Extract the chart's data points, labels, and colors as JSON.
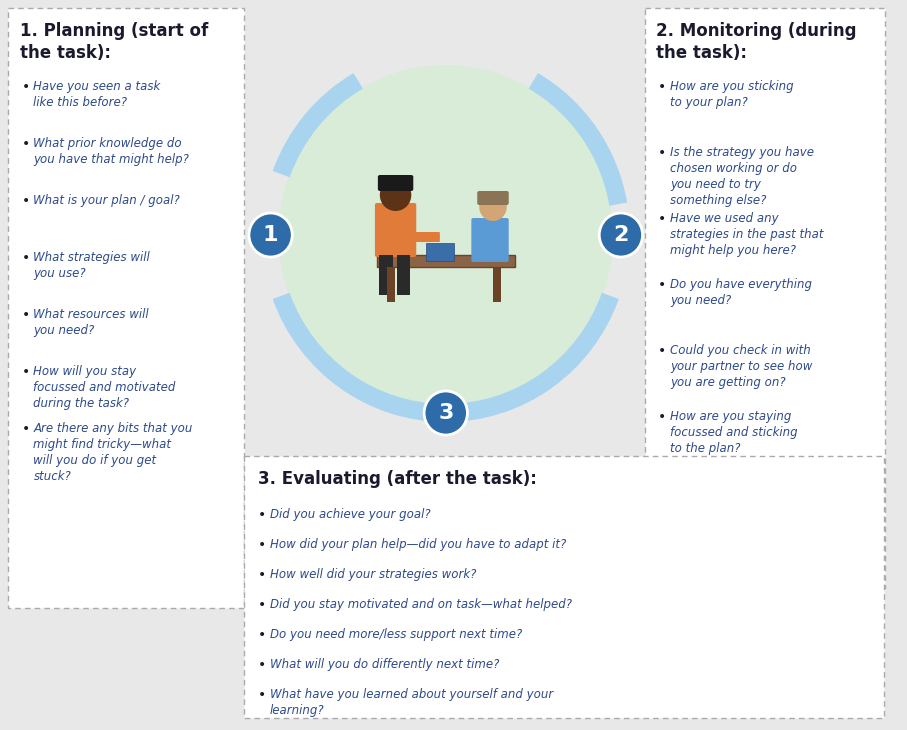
{
  "bg_color": "#e8e8e8",
  "white": "#ffffff",
  "panel_border": "#cccccc",
  "heading_color": "#1a1a2e",
  "bullet_color": "#2d4a8a",
  "circle_color": "#2d6ca8",
  "circle_text_color": "#ffffff",
  "arrow_color": "#a8d4f0",
  "center_circle_color": "#d8ecd8",
  "planning_title": "1. Planning (start of\nthe task):",
  "planning_bullets": [
    "Have you seen a task\nlike this before?",
    "What prior knowledge do\nyou have that might help?",
    "What is your plan / goal?",
    "What strategies will\nyou use?",
    "What resources will\nyou need?",
    "How will you stay\nfocussed and motivated\nduring the task?",
    "Are there any bits that you\nmight find tricky—what\nwill you do if you get\nstuck?"
  ],
  "monitoring_title": "2. Monitoring (during\nthe task):",
  "monitoring_bullets": [
    "How are you sticking\nto your plan?",
    "Is the strategy you have\nchosen working or do\nyou need to try\nsomething else?",
    "Have we used any\nstrategies in the past that\nmight help you here?",
    "Do you have everything\nyou need?",
    "Could you check in with\nyour partner to see how\nyou are getting on?",
    "How are you staying\nfocussed and sticking\nto the plan?"
  ],
  "evaluating_title": "3. Evaluating (after the task):",
  "evaluating_bullets": [
    "Did you achieve your goal?",
    "How did your plan help—did you have to adapt it?",
    "How well did your strategies work?",
    "Did you stay motivated and on task—what helped?",
    "Do you need more/less support next time?",
    "What will you do differently next time?",
    "What have you learned about yourself and your\nlearning?"
  ]
}
